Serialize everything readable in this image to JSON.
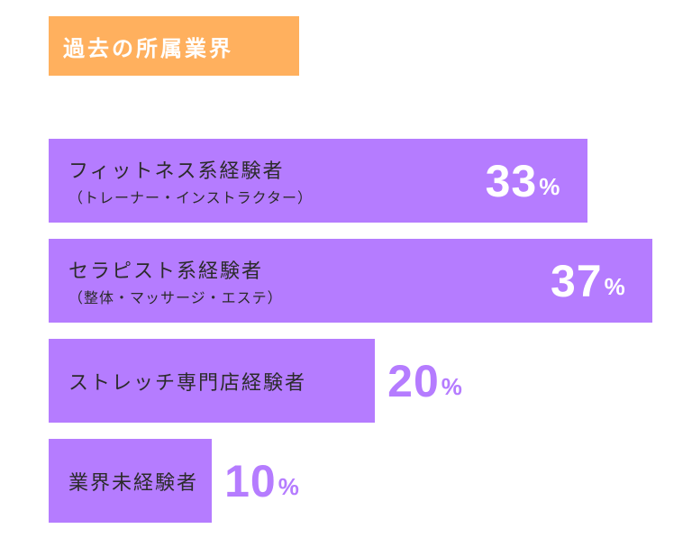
{
  "chart_data": {
    "type": "bar",
    "orientation": "horizontal",
    "title": "過去の所属業界",
    "categories": [
      "フィットネス系経験者",
      "セラピスト系経験者",
      "ストレッチ専門店経験者",
      "業界未経験者"
    ],
    "category_notes": [
      "（トレーナー・インストラクター）",
      "（整体・マッサージ・エステ）",
      null,
      null
    ],
    "values": [
      33,
      37,
      20,
      10
    ],
    "value_labels": [
      "33%",
      "37%",
      "20%",
      "10%"
    ],
    "xlim": [
      0,
      37
    ],
    "color": "#b57cff",
    "title_color": "#ffb05e"
  }
}
